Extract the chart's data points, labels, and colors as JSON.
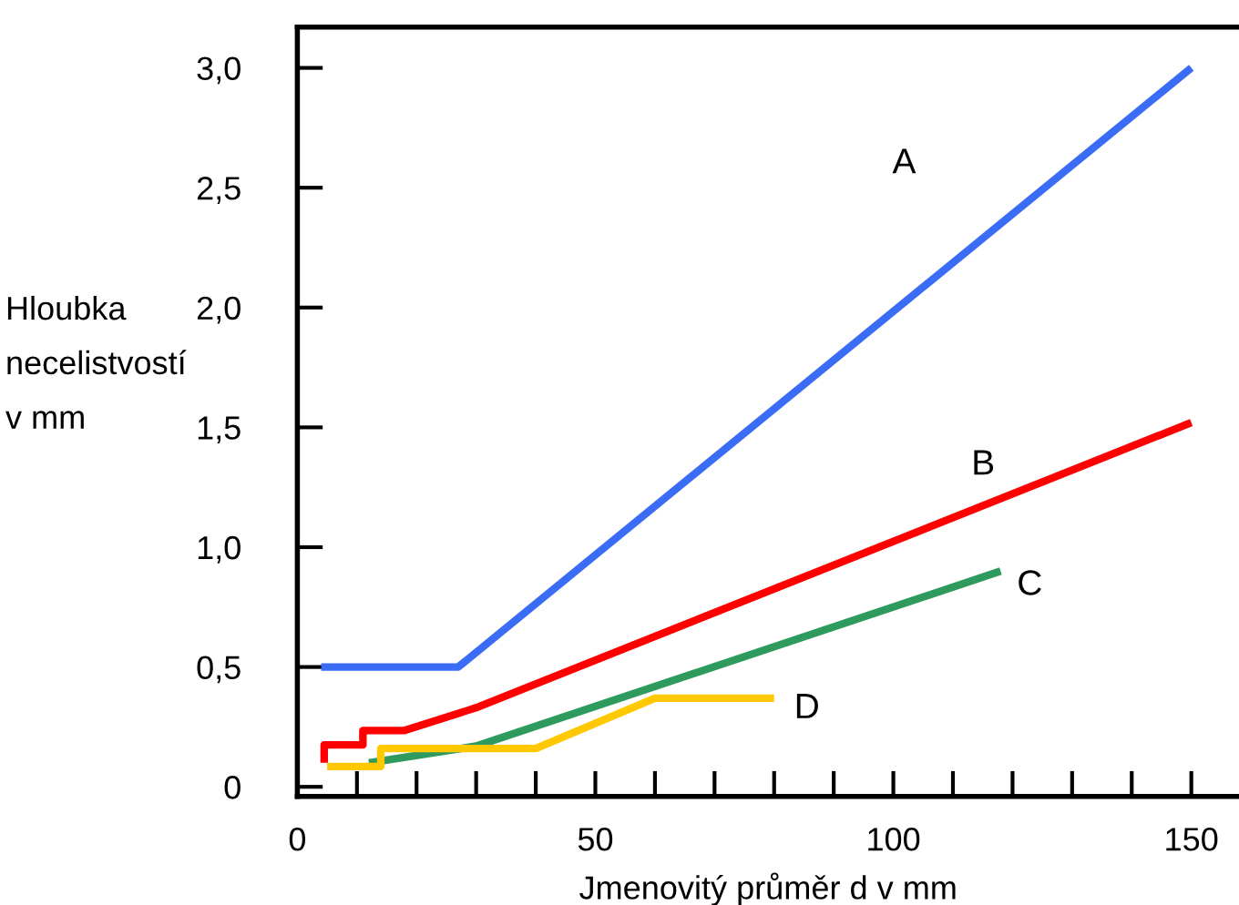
{
  "chart_data": {
    "type": "line",
    "xlabel": "Jmenovitý průměr d v mm",
    "ylabel": "Hloubka\nnecelistvostí\nv mm",
    "xlim": [
      0,
      158
    ],
    "ylim": [
      -0.04,
      3.17
    ],
    "xticks": [
      0,
      {
        "value": 10,
        "label": null
      },
      {
        "value": 20,
        "label": null
      },
      {
        "value": 30,
        "label": null
      },
      {
        "value": 40,
        "label": null
      },
      50,
      {
        "value": 60,
        "label": null
      },
      {
        "value": 70,
        "label": null
      },
      {
        "value": 80,
        "label": null
      },
      {
        "value": 90,
        "label": null
      },
      100,
      {
        "value": 110,
        "label": null
      },
      {
        "value": 120,
        "label": null
      },
      {
        "value": 130,
        "label": null
      },
      {
        "value": 140,
        "label": null
      },
      150
    ],
    "yticks": [
      {
        "value": 0,
        "label": "0"
      },
      {
        "value": 0.5,
        "label": "0,5"
      },
      {
        "value": 1.0,
        "label": "1,0"
      },
      {
        "value": 1.5,
        "label": "1,5"
      },
      {
        "value": 2.0,
        "label": "2,0"
      },
      {
        "value": 2.5,
        "label": "2,5"
      },
      {
        "value": 3.0,
        "label": "3,0"
      }
    ],
    "grid": false,
    "marker": "none",
    "line_style": "solid",
    "series": [
      {
        "name": "A",
        "color": "#3b6cf5",
        "x": [
          4,
          27,
          150
        ],
        "values": [
          0.5,
          0.5,
          3.0
        ]
      },
      {
        "name": "B",
        "color": "#ff0000",
        "x": [
          4.5,
          4.5,
          11,
          11,
          18,
          30,
          150
        ],
        "values": [
          0.1,
          0.175,
          0.175,
          0.235,
          0.235,
          0.33,
          1.52
        ]
      },
      {
        "name": "C",
        "color": "#2e9a5e",
        "x": [
          12,
          30,
          118
        ],
        "values": [
          0.1,
          0.17,
          0.9
        ]
      },
      {
        "name": "D",
        "color": "#ffc800",
        "x": [
          5,
          14,
          14,
          40,
          60,
          80
        ],
        "values": [
          0.085,
          0.085,
          0.16,
          0.16,
          0.37,
          0.37
        ]
      }
    ]
  }
}
